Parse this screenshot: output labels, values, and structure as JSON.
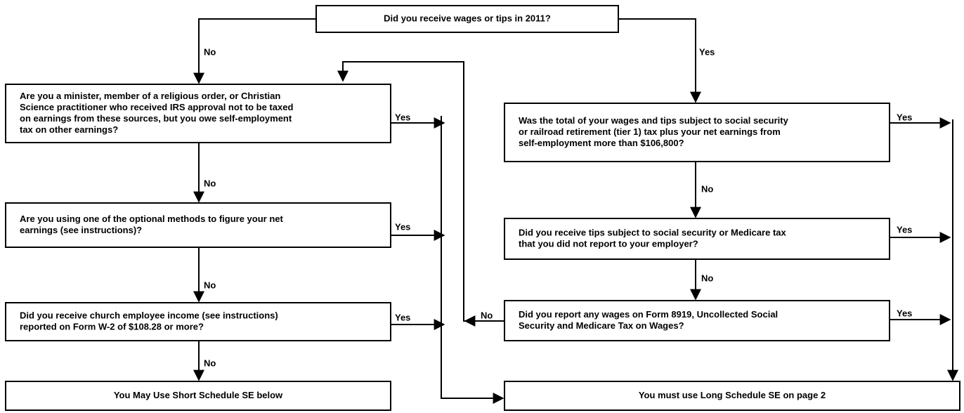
{
  "nodes": [
    {
      "lines": [
        "Did you receive wages or tips in 2011?"
      ]
    },
    {
      "lines": [
        "Are you a minister, member of a religious order, or Christian",
        "Science practitioner who received IRS approval not to be taxed",
        "on earnings from these sources, but you owe self-employment",
        "tax on other earnings?"
      ]
    },
    {
      "lines": [
        "Are you using one of the optional methods to figure your net",
        "earnings (see instructions)?"
      ]
    },
    {
      "lines": [
        "Did you receive church employee income (see instructions)",
        "reported on Form W-2 of $108.28 or more?"
      ]
    },
    {
      "lines": [
        "You May Use Short Schedule SE below"
      ]
    },
    {
      "lines": [
        "Was the total of your wages and tips subject to social security",
        "or railroad retirement (tier 1) tax plus your net earnings from",
        "self-employment more than $106,800?"
      ]
    },
    {
      "lines": [
        "Did you receive tips subject to social security or Medicare tax",
        "that you did not report to your employer?"
      ]
    },
    {
      "lines": [
        "Did you report any wages on Form 8919, Uncollected Social",
        "Security and Medicare Tax on Wages?"
      ]
    },
    {
      "lines": [
        "You must use Long Schedule SE on page 2"
      ]
    }
  ],
  "edges": [
    {
      "label": "No"
    },
    {
      "label": "Yes"
    },
    {
      "label": "No"
    },
    {
      "label": "No"
    },
    {
      "label": "No"
    },
    {
      "label": "Yes"
    },
    {
      "label": "Yes"
    },
    {
      "label": "Yes"
    },
    {
      "label": "Yes"
    },
    {
      "label": "Yes"
    },
    {
      "label": "Yes"
    },
    {
      "label": "No"
    },
    {
      "label": "No"
    },
    {
      "label": "No"
    }
  ]
}
